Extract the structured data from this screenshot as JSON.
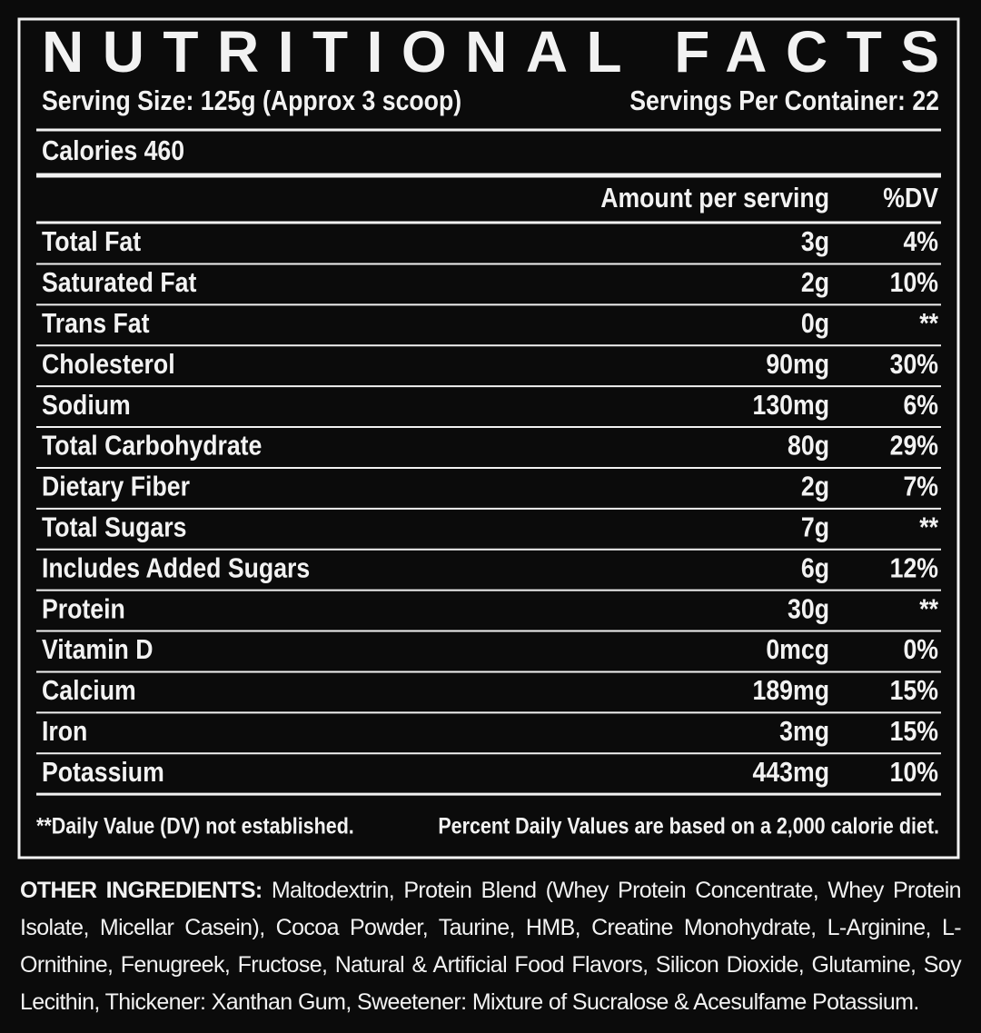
{
  "title": "NUTRITIONAL FACTS",
  "serving_size": "Serving Size: 125g (Approx 3 scoop)",
  "servings_per_container": "Servings Per Container: 22",
  "calories": "Calories 460",
  "table": {
    "header": [
      "Amount per serving",
      "%DV"
    ],
    "rows": [
      [
        "Total Fat",
        "3g",
        "4%"
      ],
      [
        "Saturated Fat",
        "2g",
        "10%"
      ],
      [
        "Trans Fat",
        "0g",
        "**"
      ],
      [
        "Cholesterol",
        "90mg",
        "30%"
      ],
      [
        "Sodium",
        "130mg",
        "6%"
      ],
      [
        "Total Carbohydrate",
        "80g",
        "29%"
      ],
      [
        "Dietary Fiber",
        "2g",
        "7%"
      ],
      [
        "Total Sugars",
        "7g",
        "**"
      ],
      [
        "Includes Added Sugars",
        "6g",
        "12%"
      ],
      [
        "Protein",
        "30g",
        "**"
      ],
      [
        "Vitamin D",
        "0mcg",
        "0%"
      ],
      [
        "Calcium",
        "189mg",
        "15%"
      ],
      [
        "Iron",
        "3mg",
        "15%"
      ],
      [
        "Potassium",
        "443mg",
        "10%"
      ]
    ]
  },
  "footnotes": [
    "**Daily Value (DV) not established.",
    "Percent Daily Values are based on a 2,000 calorie diet."
  ],
  "ingredients": {
    "label": "OTHER INGREDIENTS:",
    "text": "Maltodextrin, Protein Blend (Whey Protein Concentrate, Whey Protein Isolate, Micellar Casein), Cocoa Powder, Taurine, HMB, Creatine Monohydrate, L-Arginine, L-Ornithine, Fenugreek, Fructose, Natural & Artificial Food Flavors, Silicon Dioxide, Glutamine, Soy Lecithin, Thickener: Xanthan Gum, Sweetener: Mixture of Sucralose & Acesulfame Potassium."
  }
}
